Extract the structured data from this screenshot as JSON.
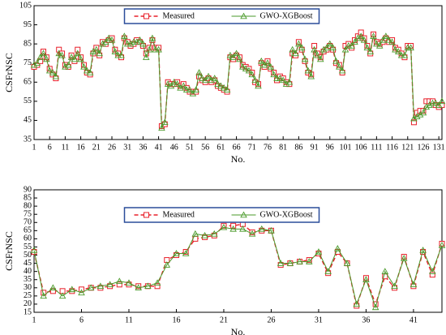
{
  "chart_data": [
    {
      "type": "line",
      "xlabel": "No.",
      "ylabel": "CSFrNSC",
      "legend": "upper center",
      "x": [
        1,
        2,
        3,
        4,
        5,
        6,
        7,
        8,
        9,
        10,
        11,
        12,
        13,
        14,
        15,
        16,
        17,
        18,
        19,
        20,
        21,
        22,
        23,
        24,
        25,
        26,
        27,
        28,
        29,
        30,
        31,
        32,
        33,
        34,
        35,
        36,
        37,
        38,
        39,
        40,
        41,
        42,
        43,
        44,
        45,
        46,
        47,
        48,
        49,
        50,
        51,
        52,
        53,
        54,
        55,
        56,
        57,
        58,
        59,
        60,
        61,
        62,
        63,
        64,
        65,
        66,
        67,
        68,
        69,
        70,
        71,
        72,
        73,
        74,
        75,
        76,
        77,
        78,
        79,
        80,
        81,
        82,
        83,
        84,
        85,
        86,
        87,
        88,
        89,
        90,
        91,
        92,
        93,
        94,
        95,
        96,
        97,
        98,
        99,
        100,
        101,
        102,
        103,
        104,
        105,
        106,
        107,
        108,
        109,
        110,
        111,
        112,
        113,
        114,
        115,
        116,
        117,
        118,
        119,
        120,
        121,
        122,
        123,
        124,
        125,
        126,
        127,
        128,
        129,
        130,
        131,
        132
      ],
      "xlim": [
        1,
        132
      ],
      "xticks": [
        1,
        6,
        11,
        16,
        21,
        26,
        31,
        36,
        41,
        46,
        51,
        56,
        61,
        66,
        71,
        76,
        81,
        86,
        91,
        96,
        101,
        106,
        111,
        116,
        121,
        126,
        131
      ],
      "ylim": [
        35,
        105
      ],
      "yticks": [
        35,
        45,
        55,
        65,
        75,
        85,
        95,
        105
      ],
      "series": [
        {
          "name": "Measured",
          "color": "#e8202a",
          "values": [
            73,
            74,
            76,
            81,
            78,
            72,
            69,
            67,
            82,
            80,
            74,
            73,
            79,
            76,
            82,
            78,
            74,
            70,
            69,
            80,
            83,
            79,
            86,
            85,
            87,
            88,
            82,
            80,
            78,
            88,
            86,
            84,
            85,
            87,
            86,
            84,
            80,
            83,
            87,
            83,
            83,
            42,
            43,
            65,
            64,
            64,
            65,
            63,
            64,
            62,
            60,
            60,
            60,
            68,
            66,
            65,
            67,
            65,
            66,
            63,
            62,
            61,
            60,
            78,
            77,
            79,
            78,
            74,
            73,
            72,
            70,
            65,
            64,
            75,
            73,
            76,
            72,
            70,
            66,
            68,
            67,
            65,
            64,
            80,
            79,
            86,
            82,
            76,
            70,
            69,
            84,
            80,
            78,
            81,
            82,
            84,
            82,
            75,
            74,
            70,
            84,
            85,
            83,
            87,
            89,
            91,
            88,
            84,
            80,
            90,
            86,
            85,
            86,
            88,
            86,
            87,
            83,
            82,
            80,
            78,
            84,
            84,
            44,
            49,
            50,
            50,
            55,
            55,
            55,
            53,
            52,
            53
          ]
        },
        {
          "name": "GWO-XGBoost",
          "color": "#4a9a2a",
          "values": [
            74,
            75,
            78,
            80,
            77,
            71,
            70,
            68,
            80,
            79,
            73,
            74,
            78,
            77,
            80,
            77,
            73,
            71,
            70,
            81,
            82,
            80,
            85,
            86,
            88,
            87,
            81,
            79,
            79,
            89,
            85,
            85,
            86,
            86,
            87,
            85,
            78,
            82,
            88,
            82,
            82,
            41,
            44,
            64,
            63,
            65,
            64,
            62,
            63,
            61,
            61,
            59,
            61,
            70,
            67,
            66,
            68,
            66,
            67,
            64,
            63,
            62,
            61,
            79,
            78,
            80,
            77,
            73,
            72,
            71,
            69,
            66,
            63,
            76,
            74,
            75,
            73,
            69,
            67,
            67,
            66,
            64,
            65,
            82,
            80,
            85,
            83,
            77,
            71,
            68,
            82,
            79,
            77,
            82,
            83,
            85,
            83,
            76,
            73,
            71,
            82,
            84,
            84,
            86,
            88,
            89,
            87,
            83,
            81,
            89,
            85,
            84,
            87,
            89,
            87,
            86,
            82,
            81,
            79,
            79,
            83,
            83,
            46,
            47,
            48,
            49,
            52,
            53,
            54,
            54,
            53,
            55
          ]
        }
      ]
    },
    {
      "type": "line",
      "xlabel": "No.",
      "ylabel": "CSFrNSC",
      "legend": "upper center",
      "x": [
        1,
        2,
        3,
        4,
        5,
        6,
        7,
        8,
        9,
        10,
        11,
        12,
        13,
        14,
        15,
        16,
        17,
        18,
        19,
        20,
        21,
        22,
        23,
        24,
        25,
        26,
        27,
        28,
        29,
        30,
        31,
        32,
        33,
        34,
        35,
        36,
        37,
        38,
        39,
        40,
        41,
        42,
        43,
        44
      ],
      "xlim": [
        1,
        44
      ],
      "xticks": [
        1,
        6,
        11,
        16,
        21,
        26,
        31,
        36,
        41
      ],
      "ylim": [
        15,
        90
      ],
      "yticks": [
        15,
        20,
        25,
        30,
        35,
        40,
        45,
        50,
        55,
        60,
        65,
        70,
        75,
        80,
        85,
        90
      ],
      "series": [
        {
          "name": "Measured",
          "color": "#e8202a",
          "values": [
            52,
            27,
            28,
            28,
            28,
            29,
            30,
            30,
            31,
            32,
            32,
            31,
            31,
            31,
            47,
            50,
            52,
            60,
            61,
            62,
            68,
            68,
            69,
            64,
            65,
            65,
            44,
            45,
            46,
            47,
            51,
            39,
            52,
            45,
            19,
            36,
            20,
            37,
            30,
            49,
            31,
            52,
            38,
            57
          ]
        },
        {
          "name": "GWO-XGBoost",
          "color": "#4a9a2a",
          "values": [
            53,
            25,
            30,
            25,
            29,
            27,
            30,
            31,
            32,
            34,
            33,
            30,
            31,
            33,
            44,
            51,
            51,
            63,
            62,
            63,
            67,
            66,
            66,
            63,
            66,
            65,
            45,
            45,
            46,
            46,
            52,
            40,
            54,
            45,
            20,
            35,
            18,
            40,
            31,
            48,
            32,
            53,
            40,
            56
          ]
        }
      ]
    }
  ]
}
